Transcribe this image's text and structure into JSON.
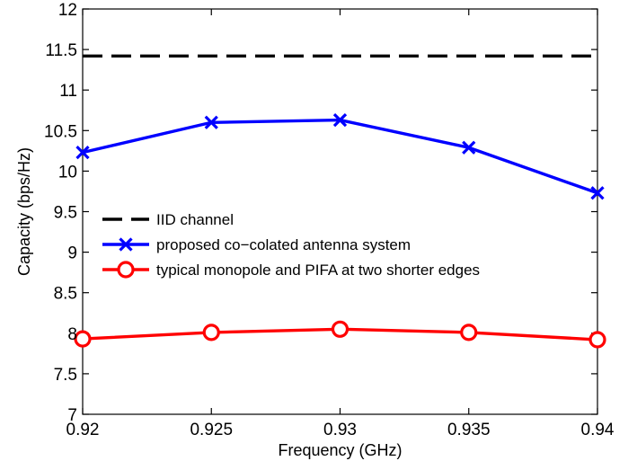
{
  "chart_data": {
    "type": "line",
    "xlabel": "Frequency (GHz)",
    "ylabel": "Capacity (bps/Hz)",
    "xlim": [
      0.92,
      0.94
    ],
    "ylim": [
      7,
      12
    ],
    "x_ticks": [
      "0.92",
      "0.925",
      "0.93",
      "0.935",
      "0.94"
    ],
    "y_ticks": [
      "7",
      "7.5",
      "8",
      "8.5",
      "9",
      "9.5",
      "10",
      "10.5",
      "11",
      "11.5",
      "12"
    ],
    "grid": false,
    "legend_position": "center-left",
    "x": [
      0.92,
      0.925,
      0.93,
      0.935,
      0.94
    ],
    "series": [
      {
        "name": "IID channel",
        "color": "#000000",
        "style": "dashed",
        "marker": "none",
        "values": [
          11.42,
          11.42,
          11.42,
          11.42,
          11.42
        ]
      },
      {
        "name": "proposed co−colated antenna system",
        "color": "#0000ff",
        "style": "solid",
        "marker": "x",
        "values": [
          10.23,
          10.6,
          10.63,
          10.29,
          9.73
        ]
      },
      {
        "name": "typical monopole and PIFA at two shorter edges",
        "color": "#ff0000",
        "style": "solid",
        "marker": "circle",
        "values": [
          7.93,
          8.01,
          8.05,
          8.01,
          7.92
        ]
      }
    ]
  }
}
